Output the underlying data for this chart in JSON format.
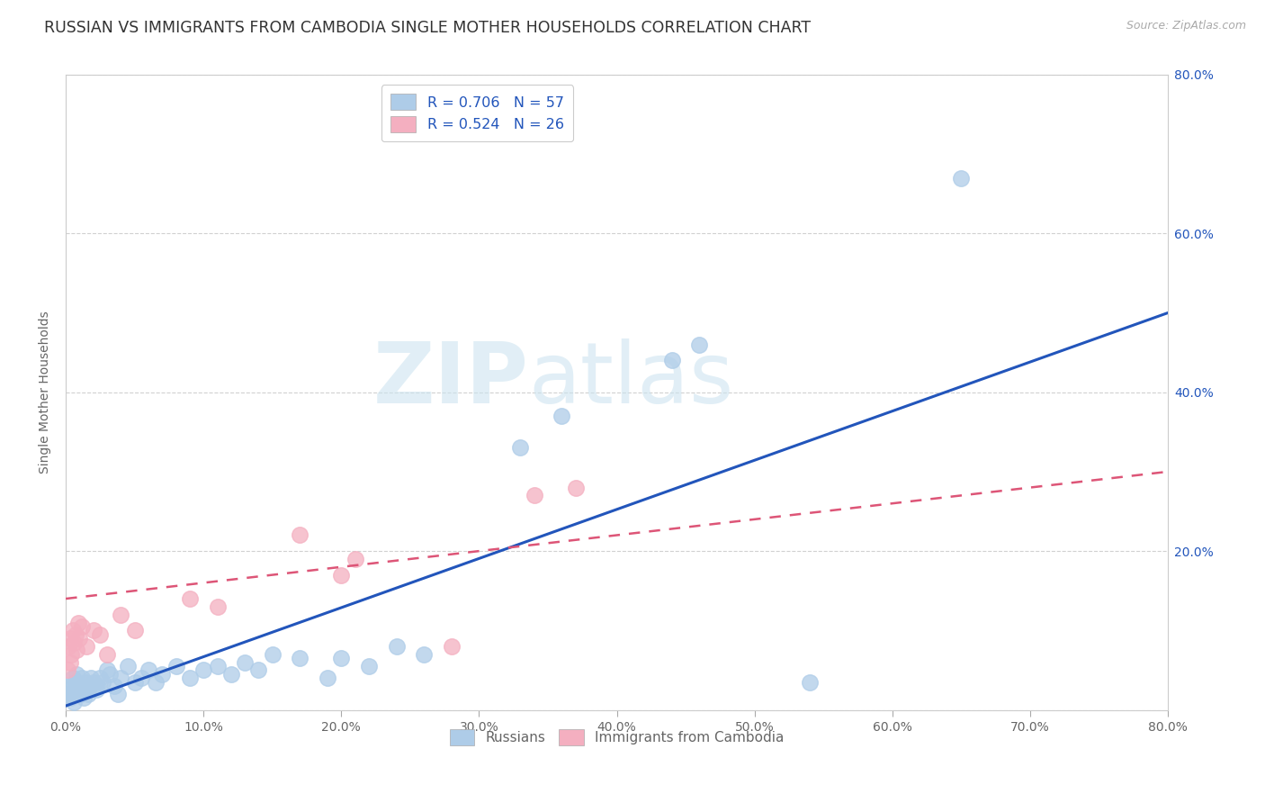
{
  "title": "RUSSIAN VS IMMIGRANTS FROM CAMBODIA SINGLE MOTHER HOUSEHOLDS CORRELATION CHART",
  "source": "Source: ZipAtlas.com",
  "ylabel": "Single Mother Households",
  "watermark_zip": "ZIP",
  "watermark_atlas": "atlas",
  "x_ticks": [
    0.0,
    10.0,
    20.0,
    30.0,
    40.0,
    50.0,
    60.0,
    70.0,
    80.0
  ],
  "y_ticks_right": [
    20.0,
    40.0,
    60.0,
    80.0
  ],
  "xlim": [
    0.0,
    80.0
  ],
  "ylim": [
    0.0,
    80.0
  ],
  "russian_color": "#aecce8",
  "cambodia_color": "#f4afc0",
  "russian_line_color": "#2255bb",
  "cambodia_line_color": "#dd5577",
  "legend_text_color": "#2255bb",
  "R_russian": 0.706,
  "N_russian": 57,
  "R_cambodia": 0.524,
  "N_cambodia": 26,
  "legend_label_russian": "Russians",
  "legend_label_cambodia": "Immigrants from Cambodia",
  "russian_points": [
    [
      0.1,
      2.0
    ],
    [
      0.15,
      1.5
    ],
    [
      0.2,
      2.5
    ],
    [
      0.3,
      3.0
    ],
    [
      0.35,
      1.5
    ],
    [
      0.4,
      2.0
    ],
    [
      0.5,
      4.0
    ],
    [
      0.55,
      1.0
    ],
    [
      0.6,
      2.5
    ],
    [
      0.7,
      3.5
    ],
    [
      0.8,
      4.5
    ],
    [
      0.9,
      2.0
    ],
    [
      1.0,
      3.0
    ],
    [
      1.1,
      2.0
    ],
    [
      1.2,
      4.0
    ],
    [
      1.3,
      1.5
    ],
    [
      1.4,
      3.5
    ],
    [
      1.5,
      2.5
    ],
    [
      1.6,
      2.0
    ],
    [
      1.7,
      3.0
    ],
    [
      1.8,
      4.0
    ],
    [
      2.0,
      3.5
    ],
    [
      2.2,
      2.5
    ],
    [
      2.3,
      3.0
    ],
    [
      2.5,
      4.0
    ],
    [
      2.7,
      3.5
    ],
    [
      3.0,
      5.0
    ],
    [
      3.2,
      4.5
    ],
    [
      3.5,
      3.0
    ],
    [
      3.8,
      2.0
    ],
    [
      4.0,
      4.0
    ],
    [
      4.5,
      5.5
    ],
    [
      5.0,
      3.5
    ],
    [
      5.5,
      4.0
    ],
    [
      6.0,
      5.0
    ],
    [
      6.5,
      3.5
    ],
    [
      7.0,
      4.5
    ],
    [
      8.0,
      5.5
    ],
    [
      9.0,
      4.0
    ],
    [
      10.0,
      5.0
    ],
    [
      11.0,
      5.5
    ],
    [
      12.0,
      4.5
    ],
    [
      13.0,
      6.0
    ],
    [
      14.0,
      5.0
    ],
    [
      15.0,
      7.0
    ],
    [
      17.0,
      6.5
    ],
    [
      19.0,
      4.0
    ],
    [
      20.0,
      6.5
    ],
    [
      22.0,
      5.5
    ],
    [
      24.0,
      8.0
    ],
    [
      26.0,
      7.0
    ],
    [
      33.0,
      33.0
    ],
    [
      36.0,
      37.0
    ],
    [
      44.0,
      44.0
    ],
    [
      46.0,
      46.0
    ],
    [
      54.0,
      3.5
    ],
    [
      65.0,
      67.0
    ]
  ],
  "cambodia_points": [
    [
      0.15,
      5.0
    ],
    [
      0.2,
      8.0
    ],
    [
      0.3,
      6.0
    ],
    [
      0.35,
      9.0
    ],
    [
      0.4,
      7.0
    ],
    [
      0.5,
      10.0
    ],
    [
      0.6,
      8.5
    ],
    [
      0.7,
      9.5
    ],
    [
      0.8,
      7.5
    ],
    [
      0.9,
      11.0
    ],
    [
      1.0,
      9.0
    ],
    [
      1.2,
      10.5
    ],
    [
      1.5,
      8.0
    ],
    [
      2.0,
      10.0
    ],
    [
      2.5,
      9.5
    ],
    [
      3.0,
      7.0
    ],
    [
      4.0,
      12.0
    ],
    [
      5.0,
      10.0
    ],
    [
      9.0,
      14.0
    ],
    [
      11.0,
      13.0
    ],
    [
      17.0,
      22.0
    ],
    [
      20.0,
      17.0
    ],
    [
      21.0,
      19.0
    ],
    [
      28.0,
      8.0
    ],
    [
      34.0,
      27.0
    ],
    [
      37.0,
      28.0
    ]
  ],
  "background_color": "#ffffff",
  "grid_color": "#cccccc",
  "title_fontsize": 12.5,
  "axis_label_fontsize": 10,
  "tick_fontsize": 10,
  "russian_line_start_x": 0.0,
  "russian_line_start_y": 0.5,
  "russian_line_end_x": 80.0,
  "russian_line_end_y": 50.0,
  "cambodia_line_start_x": 0.0,
  "cambodia_line_start_y": 14.0,
  "cambodia_line_end_x": 80.0,
  "cambodia_line_end_y": 30.0
}
